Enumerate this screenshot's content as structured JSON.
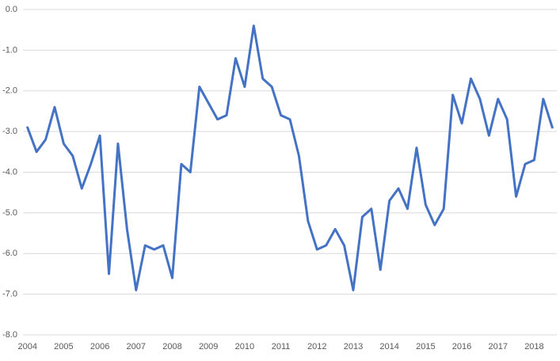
{
  "chart_data": {
    "type": "line",
    "categories": [
      "2004",
      null,
      null,
      null,
      "2005",
      null,
      null,
      null,
      "2006",
      null,
      null,
      null,
      "2007",
      null,
      null,
      null,
      "2008",
      null,
      null,
      null,
      "2009",
      null,
      null,
      null,
      "2010",
      null,
      null,
      null,
      "2011",
      null,
      null,
      null,
      "2012",
      null,
      null,
      null,
      "2013",
      null,
      null,
      null,
      "2014",
      null,
      null,
      null,
      "2015",
      null,
      null,
      null,
      "2016",
      null,
      null,
      null,
      "2017",
      null,
      null,
      null,
      "2018",
      null,
      null
    ],
    "values": [
      -2.9,
      -3.5,
      -3.2,
      -2.4,
      -3.3,
      -3.6,
      -4.4,
      -3.8,
      -3.1,
      -6.5,
      -3.3,
      -5.4,
      -6.9,
      -5.8,
      -5.9,
      -5.8,
      -6.6,
      -3.8,
      -4.0,
      -1.9,
      -2.3,
      -2.7,
      -2.6,
      -1.2,
      -1.9,
      -0.4,
      -1.7,
      -1.9,
      -2.6,
      -2.7,
      -3.6,
      -5.2,
      -5.9,
      -5.8,
      -5.4,
      -5.8,
      -6.9,
      -5.1,
      -4.9,
      -6.4,
      -4.7,
      -4.4,
      -4.9,
      -3.4,
      -4.8,
      -5.3,
      -4.9,
      -2.1,
      -2.8,
      -1.7,
      -2.2,
      -3.1,
      -2.2,
      -2.7,
      -4.6,
      -3.8,
      -3.7,
      -2.2,
      -2.9
    ],
    "color": "#4472c4",
    "ylim": [
      -8,
      0
    ],
    "yticks": [
      {
        "value": 0,
        "label": "0.0"
      },
      {
        "value": -1,
        "label": "-1.0"
      },
      {
        "value": -2,
        "label": "-2.0"
      },
      {
        "value": -3,
        "label": "-3.0"
      },
      {
        "value": -4,
        "label": "-4.0"
      },
      {
        "value": -5,
        "label": "-5.0"
      },
      {
        "value": -6,
        "label": "-6.0"
      },
      {
        "value": -7,
        "label": "-7.0"
      },
      {
        "value": -8,
        "label": "-8.0"
      }
    ],
    "grid": true
  }
}
